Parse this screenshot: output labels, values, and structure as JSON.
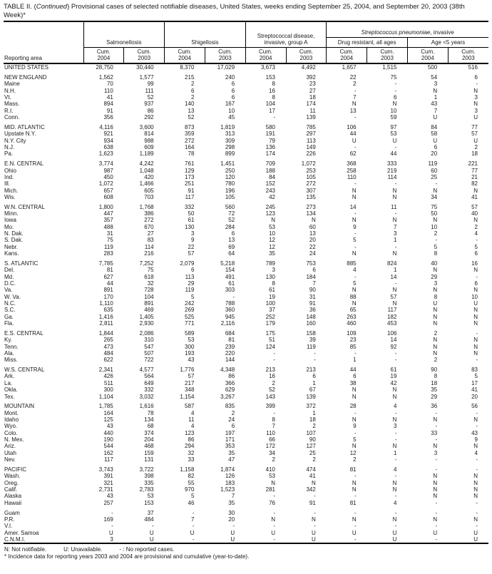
{
  "title": {
    "part1": "TABLE II. (",
    "continued": "Continued",
    "part2": ") Provisional cases of selected notifiable diseases, United States, weeks ending September 25, 2004, and September 20, 2003 (38th Week)*"
  },
  "table": {
    "reporting_area_label": "Reporting area",
    "group_salmonellosis": "Salmonellosis",
    "group_shigellosis": "Shigellosis",
    "group_strep_a": "Streptococcal disease, invasive, group A",
    "super_group_italic": "Streptococcus pneumoniae",
    "super_group_rest": ", invasive",
    "group_drug_resistant": "Drug resistant, all ages",
    "group_age_under5": "Age <5 years",
    "cum_label": "Cum.",
    "years": [
      "2004",
      "2003",
      "2004",
      "2003",
      "2004",
      "2003",
      "2004",
      "2003",
      "2004",
      "2003"
    ],
    "rows": [
      {
        "area": "UNITED STATES",
        "gap": false,
        "v": [
          "28,750",
          "30,440",
          "8,370",
          "17,029",
          "3,673",
          "4,492",
          "1,657",
          "1,515",
          "500",
          "516"
        ]
      },
      {
        "area": "NEW ENGLAND",
        "gap": true,
        "v": [
          "1,562",
          "1,577",
          "215",
          "240",
          "153",
          "392",
          "22",
          "75",
          "54",
          "6"
        ]
      },
      {
        "area": "Maine",
        "gap": false,
        "v": [
          "70",
          "99",
          "2",
          "6",
          "8",
          "23",
          "2",
          "-",
          "3",
          "-"
        ]
      },
      {
        "area": "N.H.",
        "gap": false,
        "v": [
          "110",
          "111",
          "6",
          "6",
          "16",
          "27",
          "-",
          "-",
          "N",
          "N"
        ]
      },
      {
        "area": "Vt.",
        "gap": false,
        "v": [
          "41",
          "52",
          "2",
          "6",
          "8",
          "18",
          "7",
          "6",
          "1",
          "3"
        ]
      },
      {
        "area": "Mass.",
        "gap": false,
        "v": [
          "894",
          "937",
          "140",
          "167",
          "104",
          "174",
          "N",
          "N",
          "43",
          "N"
        ]
      },
      {
        "area": "R.I.",
        "gap": false,
        "v": [
          "91",
          "86",
          "13",
          "10",
          "17",
          "11",
          "13",
          "10",
          "7",
          "3"
        ]
      },
      {
        "area": "Conn.",
        "gap": false,
        "v": [
          "356",
          "292",
          "52",
          "45",
          "-",
          "139",
          "-",
          "59",
          "U",
          "U"
        ]
      },
      {
        "area": "MID. ATLANTIC",
        "gap": true,
        "v": [
          "4,116",
          "3,600",
          "873",
          "1,819",
          "580",
          "785",
          "106",
          "97",
          "84",
          "77"
        ]
      },
      {
        "area": "Upstate N.Y.",
        "gap": false,
        "v": [
          "921",
          "814",
          "359",
          "313",
          "191",
          "297",
          "44",
          "53",
          "58",
          "57"
        ]
      },
      {
        "area": "N.Y. City",
        "gap": false,
        "v": [
          "934",
          "988",
          "272",
          "309",
          "79",
          "113",
          "U",
          "U",
          "U",
          "U"
        ]
      },
      {
        "area": "N.J.",
        "gap": false,
        "v": [
          "638",
          "609",
          "164",
          "298",
          "136",
          "149",
          "-",
          "-",
          "6",
          "2"
        ]
      },
      {
        "area": "Pa.",
        "gap": false,
        "v": [
          "1,623",
          "1,189",
          "78",
          "899",
          "174",
          "226",
          "62",
          "44",
          "20",
          "18"
        ]
      },
      {
        "area": "E.N. CENTRAL",
        "gap": true,
        "v": [
          "3,774",
          "4,242",
          "761",
          "1,451",
          "709",
          "1,072",
          "368",
          "333",
          "119",
          "221"
        ]
      },
      {
        "area": "Ohio",
        "gap": false,
        "v": [
          "987",
          "1,048",
          "129",
          "250",
          "188",
          "253",
          "258",
          "219",
          "60",
          "77"
        ]
      },
      {
        "area": "Ind.",
        "gap": false,
        "v": [
          "450",
          "420",
          "173",
          "120",
          "84",
          "105",
          "110",
          "114",
          "25",
          "21"
        ]
      },
      {
        "area": "Ill.",
        "gap": false,
        "v": [
          "1,072",
          "1,466",
          "251",
          "780",
          "152",
          "272",
          "-",
          "-",
          "-",
          "82"
        ]
      },
      {
        "area": "Mich.",
        "gap": false,
        "v": [
          "657",
          "605",
          "91",
          "196",
          "243",
          "307",
          "N",
          "N",
          "N",
          "N"
        ]
      },
      {
        "area": "Wis.",
        "gap": false,
        "v": [
          "608",
          "703",
          "117",
          "105",
          "42",
          "135",
          "N",
          "N",
          "34",
          "41"
        ]
      },
      {
        "area": "W.N. CENTRAL",
        "gap": true,
        "v": [
          "1,800",
          "1,768",
          "332",
          "560",
          "245",
          "273",
          "14",
          "11",
          "75",
          "57"
        ]
      },
      {
        "area": "Minn.",
        "gap": false,
        "v": [
          "447",
          "386",
          "50",
          "72",
          "123",
          "134",
          "-",
          "-",
          "50",
          "40"
        ]
      },
      {
        "area": "Iowa",
        "gap": false,
        "v": [
          "357",
          "272",
          "61",
          "52",
          "N",
          "N",
          "N",
          "N",
          "N",
          "N"
        ]
      },
      {
        "area": "Mo.",
        "gap": false,
        "v": [
          "488",
          "670",
          "130",
          "284",
          "53",
          "60",
          "9",
          "7",
          "10",
          "2"
        ]
      },
      {
        "area": "N. Dak.",
        "gap": false,
        "v": [
          "31",
          "27",
          "3",
          "6",
          "10",
          "13",
          "-",
          "3",
          "2",
          "4"
        ]
      },
      {
        "area": "S. Dak.",
        "gap": false,
        "v": [
          "75",
          "83",
          "9",
          "13",
          "12",
          "20",
          "5",
          "1",
          "-",
          "-"
        ]
      },
      {
        "area": "Nebr.",
        "gap": false,
        "v": [
          "119",
          "114",
          "22",
          "69",
          "12",
          "22",
          "-",
          "-",
          "5",
          "5"
        ]
      },
      {
        "area": "Kans.",
        "gap": false,
        "v": [
          "283",
          "216",
          "57",
          "64",
          "35",
          "24",
          "N",
          "N",
          "8",
          "6"
        ]
      },
      {
        "area": "S. ATLANTIC",
        "gap": true,
        "v": [
          "7,785",
          "7,252",
          "2,079",
          "5,218",
          "789",
          "753",
          "885",
          "824",
          "40",
          "16"
        ]
      },
      {
        "area": "Del.",
        "gap": false,
        "v": [
          "81",
          "75",
          "6",
          "154",
          "3",
          "6",
          "4",
          "1",
          "N",
          "N"
        ]
      },
      {
        "area": "Md.",
        "gap": false,
        "v": [
          "627",
          "618",
          "113",
          "491",
          "130",
          "184",
          "-",
          "14",
          "29",
          "-"
        ]
      },
      {
        "area": "D.C.",
        "gap": false,
        "v": [
          "44",
          "32",
          "29",
          "61",
          "8",
          "7",
          "5",
          "-",
          "3",
          "6"
        ]
      },
      {
        "area": "Va.",
        "gap": false,
        "v": [
          "891",
          "728",
          "119",
          "303",
          "61",
          "90",
          "N",
          "N",
          "N",
          "N"
        ]
      },
      {
        "area": "W. Va.",
        "gap": false,
        "v": [
          "170",
          "104",
          "5",
          "-",
          "19",
          "31",
          "88",
          "57",
          "8",
          "10"
        ]
      },
      {
        "area": "N.C.",
        "gap": false,
        "v": [
          "1,110",
          "891",
          "242",
          "788",
          "100",
          "91",
          "N",
          "N",
          "U",
          "U"
        ]
      },
      {
        "area": "S.C.",
        "gap": false,
        "v": [
          "635",
          "469",
          "269",
          "360",
          "37",
          "36",
          "65",
          "117",
          "N",
          "N"
        ]
      },
      {
        "area": "Ga.",
        "gap": false,
        "v": [
          "1,416",
          "1,405",
          "525",
          "945",
          "252",
          "148",
          "263",
          "182",
          "N",
          "N"
        ]
      },
      {
        "area": "Fla.",
        "gap": false,
        "v": [
          "2,811",
          "2,930",
          "771",
          "2,116",
          "179",
          "160",
          "460",
          "453",
          "N",
          "N"
        ]
      },
      {
        "area": "E.S. CENTRAL",
        "gap": true,
        "v": [
          "1,844",
          "2,086",
          "589",
          "684",
          "175",
          "158",
          "109",
          "106",
          "2",
          "-"
        ]
      },
      {
        "area": "Ky.",
        "gap": false,
        "v": [
          "265",
          "310",
          "53",
          "81",
          "51",
          "39",
          "23",
          "14",
          "N",
          "N"
        ]
      },
      {
        "area": "Tenn.",
        "gap": false,
        "v": [
          "473",
          "547",
          "300",
          "239",
          "124",
          "119",
          "85",
          "92",
          "N",
          "N"
        ]
      },
      {
        "area": "Ala.",
        "gap": false,
        "v": [
          "484",
          "507",
          "193",
          "220",
          "-",
          "-",
          "-",
          "-",
          "N",
          "N"
        ]
      },
      {
        "area": "Miss.",
        "gap": false,
        "v": [
          "622",
          "722",
          "43",
          "144",
          "-",
          "-",
          "1",
          "-",
          "2",
          "-"
        ]
      },
      {
        "area": "W.S. CENTRAL",
        "gap": true,
        "v": [
          "2,341",
          "4,577",
          "1,776",
          "4,348",
          "213",
          "213",
          "44",
          "61",
          "90",
          "83"
        ]
      },
      {
        "area": "Ark.",
        "gap": false,
        "v": [
          "426",
          "564",
          "57",
          "86",
          "16",
          "6",
          "6",
          "19",
          "8",
          "5"
        ]
      },
      {
        "area": "La.",
        "gap": false,
        "v": [
          "511",
          "649",
          "217",
          "366",
          "2",
          "1",
          "38",
          "42",
          "18",
          "17"
        ]
      },
      {
        "area": "Okla.",
        "gap": false,
        "v": [
          "300",
          "332",
          "348",
          "629",
          "52",
          "67",
          "N",
          "N",
          "35",
          "41"
        ]
      },
      {
        "area": "Tex.",
        "gap": false,
        "v": [
          "1,104",
          "3,032",
          "1,154",
          "3,267",
          "143",
          "139",
          "N",
          "N",
          "29",
          "20"
        ]
      },
      {
        "area": "MOUNTAIN",
        "gap": true,
        "v": [
          "1,785",
          "1,616",
          "587",
          "835",
          "399",
          "372",
          "28",
          "4",
          "36",
          "56"
        ]
      },
      {
        "area": "Mont.",
        "gap": false,
        "v": [
          "164",
          "78",
          "4",
          "2",
          "-",
          "1",
          "-",
          "-",
          "-",
          "-"
        ]
      },
      {
        "area": "Idaho",
        "gap": false,
        "v": [
          "125",
          "134",
          "11",
          "24",
          "8",
          "18",
          "N",
          "N",
          "N",
          "N"
        ]
      },
      {
        "area": "Wyo.",
        "gap": false,
        "v": [
          "43",
          "68",
          "4",
          "6",
          "7",
          "2",
          "9",
          "3",
          "-",
          "-"
        ]
      },
      {
        "area": "Colo.",
        "gap": false,
        "v": [
          "440",
          "374",
          "123",
          "197",
          "110",
          "107",
          "-",
          "-",
          "33",
          "43"
        ]
      },
      {
        "area": "N. Mex.",
        "gap": false,
        "v": [
          "190",
          "204",
          "86",
          "171",
          "66",
          "90",
          "5",
          "-",
          "-",
          "9"
        ]
      },
      {
        "area": "Ariz.",
        "gap": false,
        "v": [
          "544",
          "468",
          "294",
          "353",
          "172",
          "127",
          "N",
          "N",
          "N",
          "N"
        ]
      },
      {
        "area": "Utah",
        "gap": false,
        "v": [
          "162",
          "159",
          "32",
          "35",
          "34",
          "25",
          "12",
          "1",
          "3",
          "4"
        ]
      },
      {
        "area": "Nev.",
        "gap": false,
        "v": [
          "117",
          "131",
          "33",
          "47",
          "2",
          "2",
          "2",
          "-",
          "-",
          "-"
        ]
      },
      {
        "area": "PACIFIC",
        "gap": true,
        "v": [
          "3,743",
          "3,722",
          "1,158",
          "1,874",
          "410",
          "474",
          "81",
          "4",
          "-",
          "-"
        ]
      },
      {
        "area": "Wash.",
        "gap": false,
        "v": [
          "391",
          "398",
          "82",
          "126",
          "53",
          "41",
          "-",
          "-",
          "N",
          "N"
        ]
      },
      {
        "area": "Oreg.",
        "gap": false,
        "v": [
          "321",
          "335",
          "55",
          "183",
          "N",
          "N",
          "N",
          "N",
          "N",
          "N"
        ]
      },
      {
        "area": "Calif.",
        "gap": false,
        "v": [
          "2,731",
          "2,783",
          "970",
          "1,523",
          "281",
          "342",
          "N",
          "N",
          "N",
          "N"
        ]
      },
      {
        "area": "Alaska",
        "gap": false,
        "v": [
          "43",
          "53",
          "5",
          "7",
          "-",
          "-",
          "-",
          "-",
          "N",
          "N"
        ]
      },
      {
        "area": "Hawaii",
        "gap": false,
        "v": [
          "257",
          "153",
          "46",
          "35",
          "76",
          "91",
          "81",
          "4",
          "-",
          "-"
        ]
      },
      {
        "area": "Guam",
        "gap": true,
        "v": [
          "-",
          "37",
          "-",
          "30",
          "-",
          "-",
          "-",
          "-",
          "-",
          "-"
        ]
      },
      {
        "area": "P.R.",
        "gap": false,
        "v": [
          "169",
          "484",
          "7",
          "20",
          "N",
          "N",
          "N",
          "N",
          "N",
          "N"
        ]
      },
      {
        "area": "V.I.",
        "gap": false,
        "v": [
          "-",
          "-",
          "-",
          "-",
          "-",
          "-",
          "-",
          "-",
          "-",
          "-"
        ]
      },
      {
        "area": "Amer. Samoa",
        "gap": false,
        "v": [
          "U",
          "U",
          "U",
          "U",
          "U",
          "U",
          "U",
          "U",
          "U",
          "U"
        ]
      },
      {
        "area": "C.N.M.I.",
        "gap": false,
        "v": [
          "3",
          "U",
          "-",
          "U",
          "-",
          "U",
          "-",
          "U",
          "-",
          "U"
        ]
      }
    ]
  },
  "footnotes": {
    "n": "N: Not notifiable.",
    "u": "U: Unavailable.",
    "dash": "- : No reported cases.",
    "asterisk": "* Incidence data for reporting years 2003 and 2004 are provisional and cumulative (year-to-date)."
  }
}
